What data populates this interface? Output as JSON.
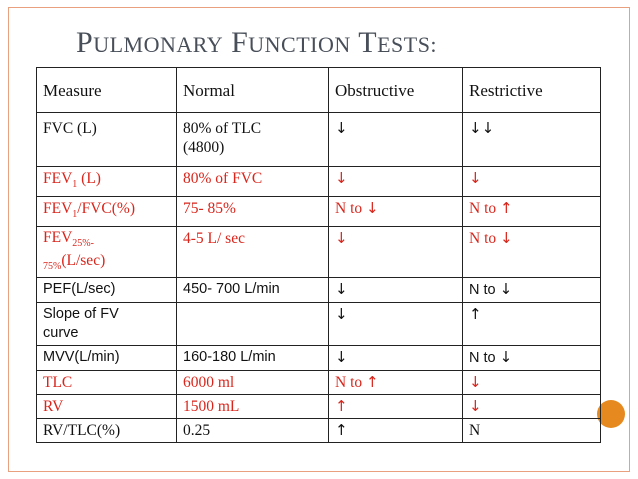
{
  "title": {
    "p": "P",
    "ulmonary": "ULMONARY",
    "f": "F",
    "unction": "UNCTION",
    "t": "T",
    "ests": "ESTS:"
  },
  "colors": {
    "accent": "#e68a1f",
    "red": "#d9261c",
    "title": "#494f59",
    "frame": "#e8a07e"
  },
  "table": {
    "headers": [
      "Measure",
      "Normal",
      "Obstructive",
      "Restrictive"
    ],
    "rows": {
      "fvc": {
        "measure": "FVC (L)",
        "normal_1": "80% of TLC",
        "normal_2": "(4800)",
        "obs": "↓",
        "res": "↓↓"
      },
      "fev1": {
        "measure_a": "FEV",
        "measure_sub": "1",
        "measure_b": " (L)",
        "normal": "80% of FVC",
        "obs": "↓",
        "res": "↓"
      },
      "fev1fvc": {
        "measure_a": "FEV",
        "measure_sub": "1",
        "measure_b": "/FVC(%)",
        "normal": "75- 85%",
        "obs_text": "N to ",
        "obs_arrow": "↓",
        "res_text": "N to ",
        "res_arrow": "↑"
      },
      "fev2575": {
        "measure_a": "FEV",
        "measure_sub1": "25%-",
        "measure_sub2": "75%",
        "measure_b": "(L/sec)",
        "normal": "4-5 L/ sec",
        "obs": "↓",
        "res_text": "N to ",
        "res_arrow": "↓"
      },
      "pef": {
        "measure": "PEF(L/sec)",
        "normal": "450- 700 L/min",
        "obs": "↓",
        "res_text": "N to ",
        "res_arrow": "↓"
      },
      "slope": {
        "measure_1": "Slope of FV",
        "measure_2": "curve",
        "normal": "",
        "obs": "↓",
        "res": "↑"
      },
      "mvv": {
        "measure": "MVV(L/min)",
        "normal": "160-180 L/min",
        "obs": "↓",
        "res_text": "N to ",
        "res_arrow": "↓"
      },
      "tlc": {
        "measure": "TLC",
        "normal": "6000 ml",
        "obs_text": "N to ",
        "obs_arrow": "↑",
        "res": "↓"
      },
      "rv": {
        "measure": "RV",
        "normal": "1500 mL",
        "obs": "↑",
        "res": "↓"
      },
      "rvtlc": {
        "measure": "RV/TLC(%)",
        "normal": "0.25",
        "obs": "↑",
        "res": "N"
      }
    }
  }
}
